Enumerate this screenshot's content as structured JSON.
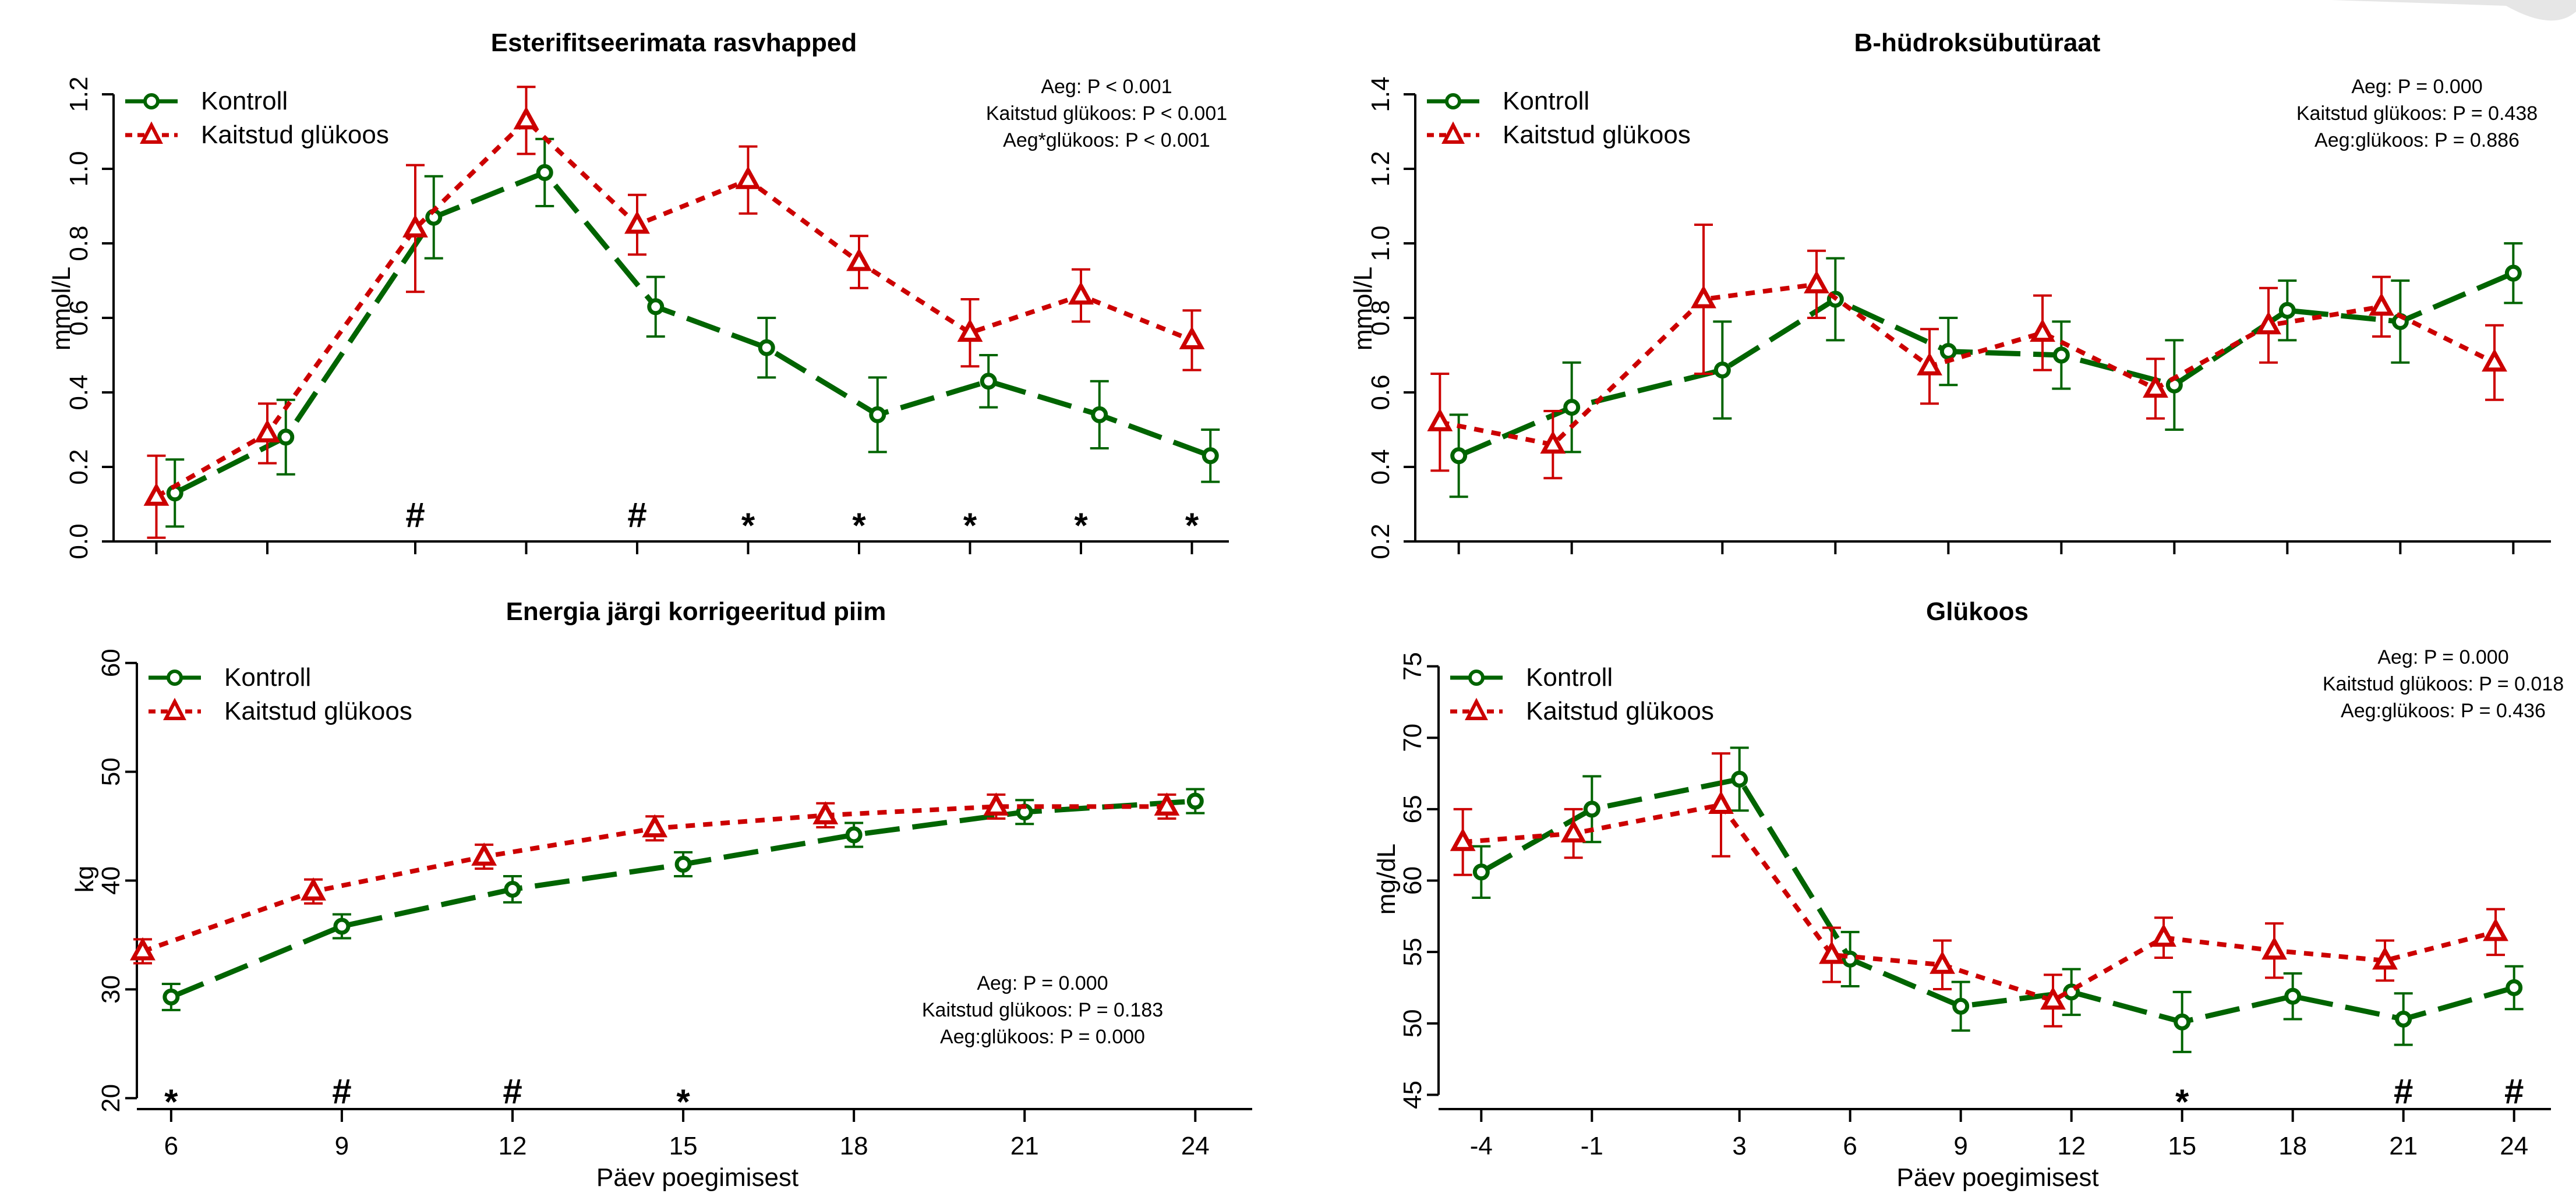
{
  "colors": {
    "control": "#006400",
    "glucose": "#CC0000"
  },
  "shared_x_label": "Päev poegimisest",
  "chart_data": [
    {
      "id": "nefa",
      "type": "line",
      "title": "Esterifitseerimata rasvhapped",
      "ylabel": "mmol/L",
      "xlabel": "",
      "ylim": [
        0,
        1.25
      ],
      "yticks": [
        "0.0",
        "0.2",
        "0.4",
        "0.6",
        "0.8",
        "1.0",
        "1.2"
      ],
      "xlim": [
        -5,
        25
      ],
      "xticks": [
        -4,
        -1,
        3,
        6,
        9,
        12,
        15,
        18,
        21,
        24
      ],
      "xticklabels": [],
      "legend": [
        "Kontroll",
        "Kaitstud glükoos"
      ],
      "legend_position": "top-left",
      "stats": [
        "Aeg: P < 0.001",
        "Kaitstud glükoos: P < 0.001",
        "Aeg*glükoos: P < 0.001"
      ],
      "stats_position": "top-right",
      "markers": [
        {
          "x": 3,
          "label": "#"
        },
        {
          "x": 9,
          "label": "#"
        },
        {
          "x": 12,
          "label": "*"
        },
        {
          "x": 15,
          "label": "*"
        },
        {
          "x": 18,
          "label": "*"
        },
        {
          "x": 21,
          "label": "*"
        },
        {
          "x": 24,
          "label": "*"
        }
      ],
      "series": [
        {
          "name": "Kontroll",
          "x": [
            -3.5,
            -0.5,
            3.5,
            6.5,
            9.5,
            12.5,
            15.5,
            18.5,
            21.5,
            24.5
          ],
          "y": [
            0.13,
            0.28,
            0.87,
            0.99,
            0.63,
            0.52,
            0.34,
            0.43,
            0.34,
            0.23
          ],
          "err": [
            0.09,
            0.1,
            0.11,
            0.09,
            0.08,
            0.08,
            0.1,
            0.07,
            0.09,
            0.07
          ]
        },
        {
          "name": "Kaitstud glükoos",
          "x": [
            -4,
            -1,
            3,
            6,
            9,
            12,
            15,
            18,
            21,
            24
          ],
          "y": [
            0.12,
            0.29,
            0.84,
            1.13,
            0.85,
            0.97,
            0.75,
            0.56,
            0.66,
            0.54
          ],
          "err": [
            0.11,
            0.08,
            0.17,
            0.09,
            0.08,
            0.09,
            0.07,
            0.09,
            0.07,
            0.08
          ]
        }
      ]
    },
    {
      "id": "bhb",
      "type": "line",
      "title": "B-hüdroksübutüraat",
      "ylabel": "mmol/L",
      "xlabel": "",
      "ylim": [
        0.2,
        1.45
      ],
      "yticks": [
        "0.2",
        "0.4",
        "0.6",
        "0.8",
        "1.0",
        "1.2",
        "1.4"
      ],
      "xlim": [
        -5,
        25
      ],
      "xticks": [
        -4,
        -1,
        3,
        6,
        9,
        12,
        15,
        18,
        21,
        24
      ],
      "xticklabels": [],
      "legend": [
        "Kontroll",
        "Kaitstud glükoos"
      ],
      "legend_position": "top-left",
      "stats": [
        "Aeg: P = 0.000",
        "Kaitstud glükoos: P = 0.438",
        "Aeg:glükoos: P = 0.886"
      ],
      "stats_position": "top-right",
      "markers": [],
      "series": [
        {
          "name": "Kontroll",
          "x": [
            -4,
            -1,
            3,
            6,
            9,
            12,
            15,
            18,
            21,
            24
          ],
          "y": [
            0.43,
            0.56,
            0.66,
            0.85,
            0.71,
            0.7,
            0.62,
            0.82,
            0.79,
            0.92
          ],
          "err": [
            0.11,
            0.12,
            0.13,
            0.11,
            0.09,
            0.09,
            0.12,
            0.08,
            0.11,
            0.08
          ]
        },
        {
          "name": "Kaitstud glükoos",
          "x": [
            -4.5,
            -1.5,
            2.5,
            5.5,
            8.5,
            11.5,
            14.5,
            17.5,
            20.5,
            23.5
          ],
          "y": [
            0.52,
            0.46,
            0.85,
            0.89,
            0.67,
            0.76,
            0.61,
            0.78,
            0.83,
            0.68
          ],
          "err": [
            0.13,
            0.09,
            0.2,
            0.09,
            0.1,
            0.1,
            0.08,
            0.1,
            0.08,
            0.1
          ]
        }
      ]
    },
    {
      "id": "milk",
      "type": "line",
      "title": "Energia järgi korrigeeritud piim",
      "ylabel": "kg",
      "xlabel": "Päev poegimisest",
      "ylim": [
        19,
        61
      ],
      "yticks": [
        "20",
        "30",
        "40",
        "50",
        "60"
      ],
      "xlim": [
        5.5,
        25
      ],
      "xticks": [
        6,
        9,
        12,
        15,
        18,
        21,
        24
      ],
      "xticklabels": [
        "6",
        "9",
        "12",
        "15",
        "18",
        "21",
        "24"
      ],
      "legend": [
        "Kontroll",
        "Kaitstud glükoos"
      ],
      "legend_position": "top-left",
      "stats": [
        "Aeg: P = 0.000",
        "Kaitstud glükoos: P = 0.183",
        "Aeg:glükoos: P = 0.000"
      ],
      "stats_position": "bottom-right",
      "markers": [
        {
          "x": 6,
          "label": "*"
        },
        {
          "x": 9,
          "label": "#"
        },
        {
          "x": 12,
          "label": "#"
        },
        {
          "x": 15,
          "label": "*"
        }
      ],
      "series": [
        {
          "name": "Kontroll",
          "x": [
            6,
            9,
            12,
            15,
            18,
            21,
            24
          ],
          "y": [
            29.3,
            35.8,
            39.2,
            41.5,
            44.2,
            46.3,
            47.3
          ],
          "err": [
            1.2,
            1.1,
            1.2,
            1.1,
            1.1,
            1.1,
            1.1
          ]
        },
        {
          "name": "Kaitstud glükoos",
          "x": [
            5.5,
            8.5,
            11.5,
            14.5,
            17.5,
            20.5,
            23.5
          ],
          "y": [
            33.5,
            39.0,
            42.2,
            44.8,
            46.0,
            46.8,
            46.8
          ],
          "err": [
            1.1,
            1.1,
            1.1,
            1.1,
            1.1,
            1.1,
            1.1
          ]
        }
      ]
    },
    {
      "id": "glucose",
      "type": "line",
      "title": "Glükoos",
      "ylabel": "mg/dL",
      "xlabel": "Päev poegimisest",
      "ylim": [
        44,
        76
      ],
      "yticks": [
        "45",
        "50",
        "55",
        "60",
        "65",
        "70",
        "75"
      ],
      "xlim": [
        -5,
        25
      ],
      "xticks": [
        -4,
        -1,
        3,
        6,
        9,
        12,
        15,
        18,
        21,
        24
      ],
      "xticklabels": [
        "-4",
        "-1",
        "3",
        "6",
        "9",
        "12",
        "15",
        "18",
        "21",
        "24"
      ],
      "legend": [
        "Kontroll",
        "Kaitstud glükoos"
      ],
      "legend_position": "top-left",
      "stats": [
        "Aeg: P = 0.000",
        "Kaitstud glükoos: P = 0.018",
        "Aeg:glükoos: P = 0.436"
      ],
      "stats_position": "top-right",
      "markers": [
        {
          "x": 15,
          "label": "*"
        },
        {
          "x": 21,
          "label": "#"
        },
        {
          "x": 24,
          "label": "#"
        }
      ],
      "series": [
        {
          "name": "Kontroll",
          "x": [
            -4,
            -1,
            3,
            6,
            9,
            12,
            15,
            18,
            21,
            24
          ],
          "y": [
            60.6,
            65.0,
            67.1,
            54.5,
            51.2,
            52.2,
            50.1,
            51.9,
            50.3,
            52.5
          ],
          "err": [
            1.8,
            2.3,
            2.2,
            1.9,
            1.7,
            1.6,
            2.1,
            1.6,
            1.8,
            1.5
          ]
        },
        {
          "name": "Kaitstud glükoos",
          "x": [
            -4.5,
            -1.5,
            2.5,
            5.5,
            8.5,
            11.5,
            14.5,
            17.5,
            20.5,
            23.5
          ],
          "y": [
            62.7,
            63.3,
            65.3,
            54.8,
            54.1,
            51.6,
            56.0,
            55.1,
            54.4,
            56.4
          ],
          "err": [
            2.3,
            1.7,
            3.6,
            1.9,
            1.7,
            1.8,
            1.4,
            1.9,
            1.4,
            1.6
          ]
        }
      ]
    }
  ]
}
